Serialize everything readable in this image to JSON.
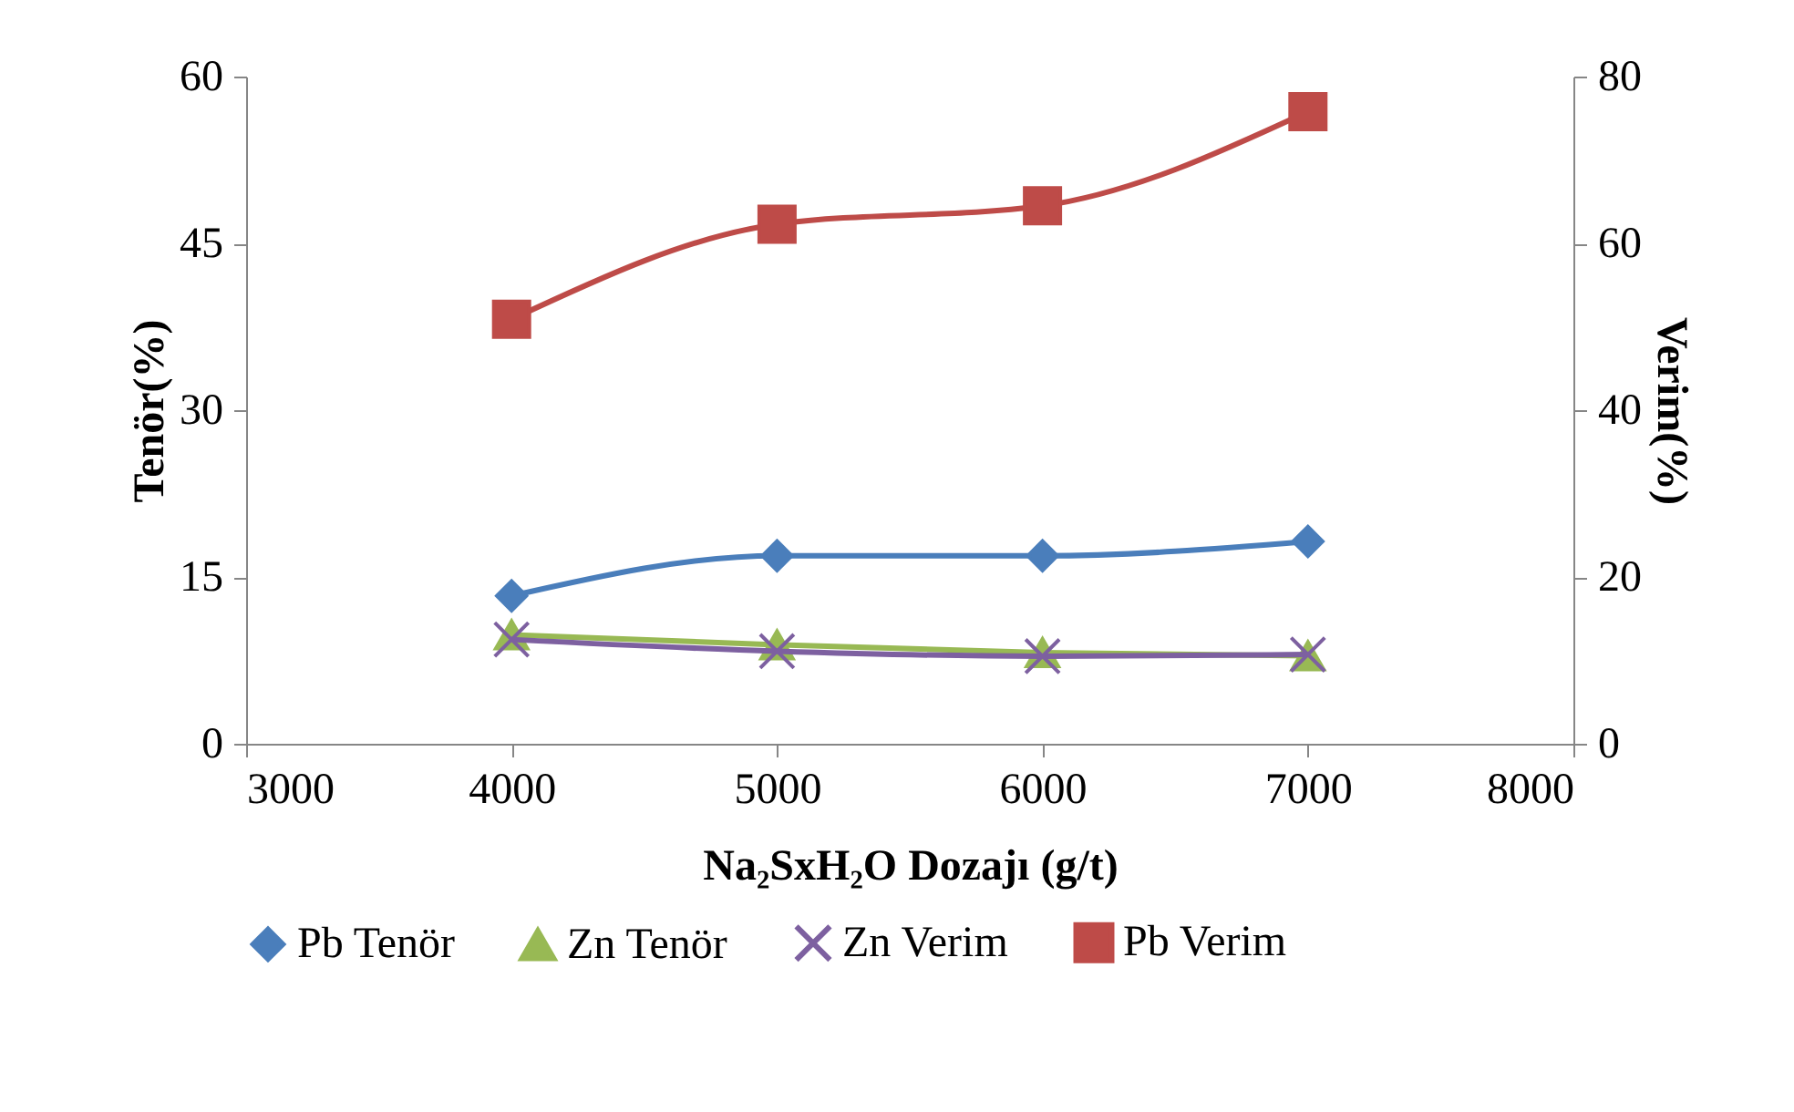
{
  "chart_data": {
    "type": "line",
    "xlabel": "Na₂SxH₂O Dozajı (g/t)",
    "ylabel": "Tenör(%)",
    "y2label": "Verim(%)",
    "x": [
      4000,
      5000,
      6000,
      7000
    ],
    "series": [
      {
        "name": "Pb Tenör",
        "color": "#4a7ebb",
        "marker": "diamond",
        "values": [
          13.3,
          16.9,
          16.9,
          18.2
        ]
      },
      {
        "name": "Zn Tenör",
        "color": "#98b954",
        "marker": "triangle",
        "values": [
          9.8,
          8.9,
          8.2,
          7.9
        ]
      },
      {
        "name": "Zn Verim",
        "color": "#7d60a0",
        "marker": "cross",
        "axis": "y2",
        "values": [
          12.5,
          11.1,
          10.5,
          10.7
        ]
      },
      {
        "name": "Pb Verim",
        "color": "#be4b48",
        "marker": "square",
        "axis": "y2",
        "values": [
          50.9,
          62.3,
          64.5,
          75.8
        ]
      }
    ],
    "xlim": [
      3000,
      8000
    ],
    "xticks": [
      3000,
      4000,
      5000,
      6000,
      7000,
      8000
    ],
    "ylim": [
      0,
      60
    ],
    "yticks": [
      0,
      15,
      30,
      45,
      60
    ],
    "y2lim": [
      0,
      80
    ],
    "y2ticks": [
      0,
      20,
      40,
      60,
      80
    ],
    "grid": false,
    "legend": "bottom",
    "line_style": "solid"
  }
}
